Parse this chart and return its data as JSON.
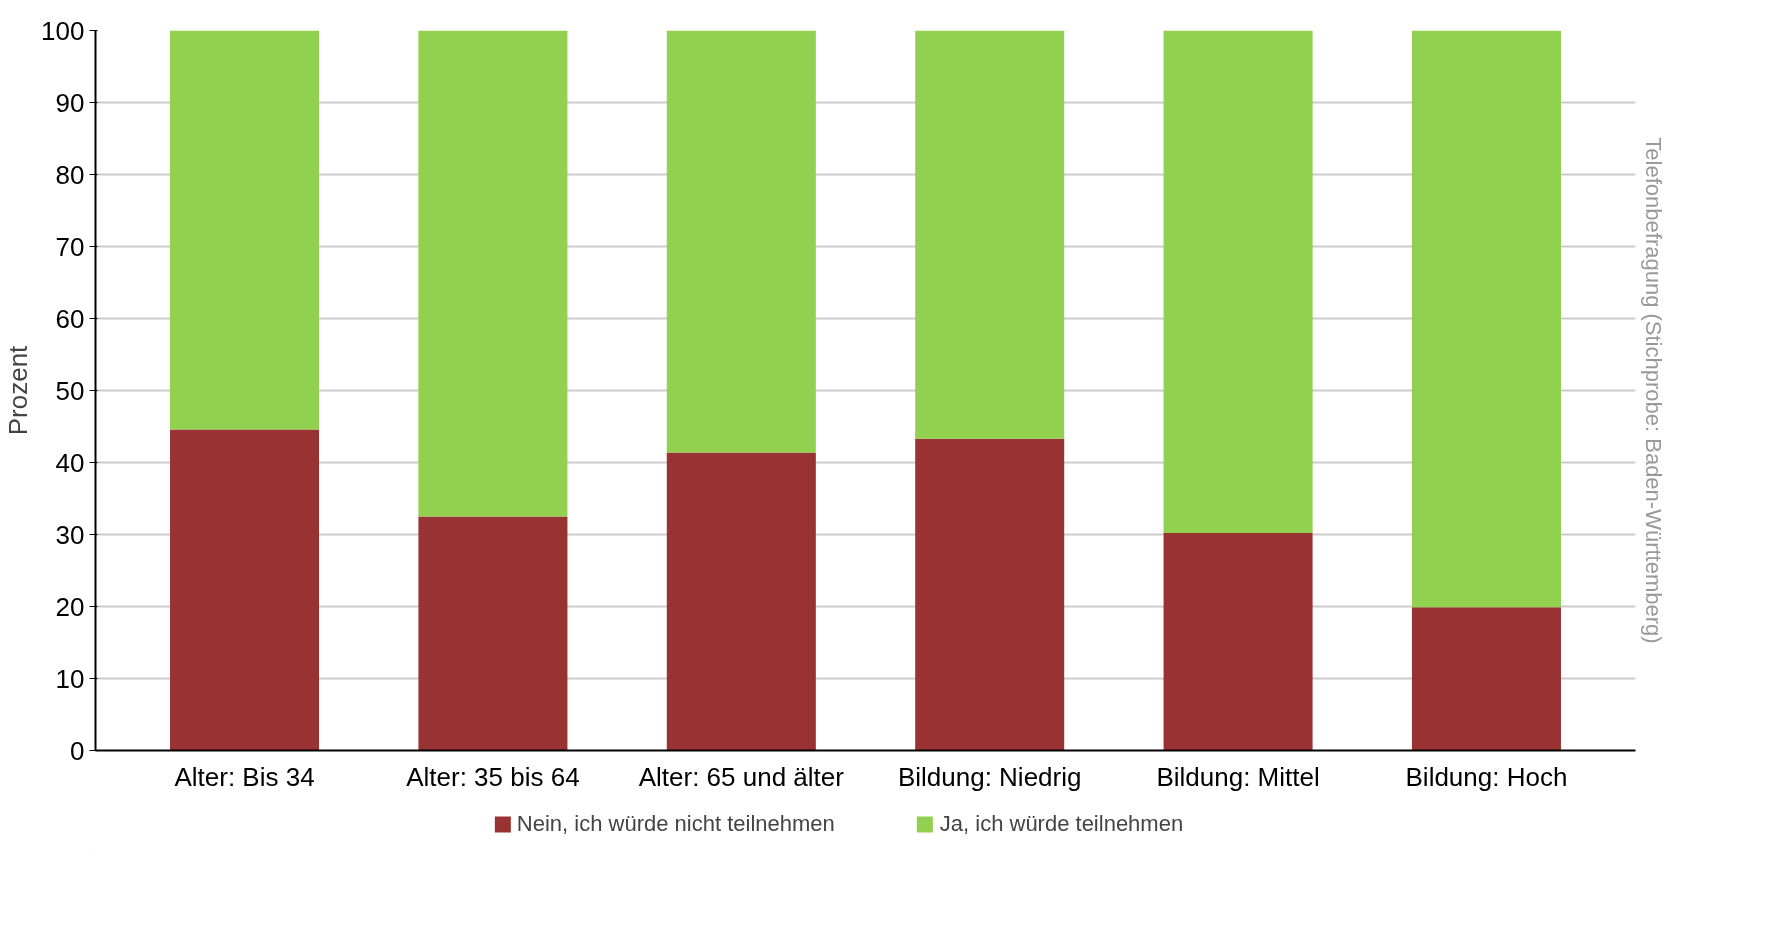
{
  "chart_data": {
    "type": "bar",
    "stacked": true,
    "ylabel": "Prozent",
    "categories": [
      "Alter: Bis 34",
      "Alter: 35 bis 64",
      "Alter: 65 und älter",
      "Bildung: Niedrig",
      "Bildung: Mittel",
      "Bildung: Hoch"
    ],
    "series": [
      {
        "name": "Nein, ich würde nicht teilnehmen",
        "color": "#993333",
        "values": [
          44.6,
          32.5,
          41.4,
          43.3,
          30.2,
          19.9
        ]
      },
      {
        "name": "Ja, ich würde teilnehmen",
        "color": "#92d050",
        "values": [
          55.4,
          67.5,
          58.6,
          56.7,
          69.8,
          80.1
        ]
      }
    ],
    "ylim": [
      0,
      100
    ],
    "yticks": [
      0,
      10,
      20,
      30,
      40,
      50,
      60,
      70,
      80,
      90,
      100
    ],
    "grid": "y",
    "legend": "bottom",
    "annotations": [
      "Telefonbefragung (Stichprobe: Baden-Württemberg)"
    ]
  }
}
